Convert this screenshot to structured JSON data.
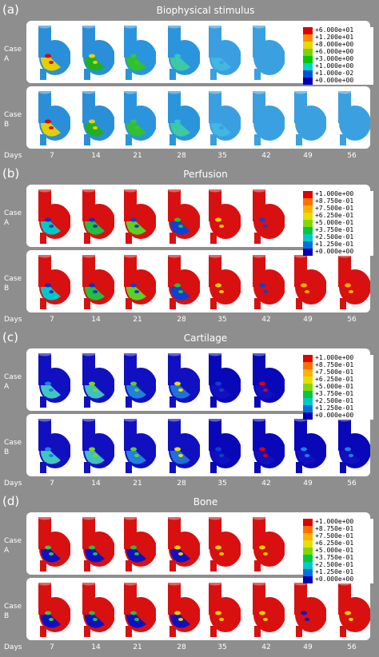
{
  "panels": [
    {
      "letter": "(a)",
      "title": "Biophysical stimulus",
      "scheme": "stimulus",
      "legend": [
        "+6.000e+01",
        "+1.200e+01",
        "+8.000e+00",
        "+6.000e+00",
        "+3.000e+00",
        "+1.000e+00",
        "+1.000e-02",
        "+0.000e+00"
      ],
      "legend_colors": [
        "#e00000",
        "#ff8c00",
        "#e6d800",
        "#7ad400",
        "#00c800",
        "#00d4c4",
        "#0050e0",
        "#0000b0"
      ],
      "caseA": {
        "label": "Case A",
        "count": 6
      },
      "caseB": {
        "label": "Case B",
        "count": 8
      }
    },
    {
      "letter": "(b)",
      "title": "Perfusion",
      "scheme": "perfusion",
      "legend": [
        "+1.000e+00",
        "+8.750e-01",
        "+7.500e-01",
        "+6.250e-01",
        "+5.000e-01",
        "+3.750e-01",
        "+2.500e-01",
        "+1.250e-01",
        "+0.000e+00"
      ],
      "legend_colors": [
        "#e00000",
        "#ff7000",
        "#ffb000",
        "#e6e000",
        "#80d800",
        "#00c840",
        "#00c8c8",
        "#0070e0",
        "#0000b0"
      ],
      "caseA": {
        "label": "Case A",
        "count": 6
      },
      "caseB": {
        "label": "Case B",
        "count": 8
      }
    },
    {
      "letter": "(c)",
      "title": "Cartilage",
      "scheme": "cartilage",
      "legend": [
        "+1.000e+00",
        "+8.750e-01",
        "+7.500e-01",
        "+6.250e-01",
        "+5.000e-01",
        "+3.750e-01",
        "+2.500e-01",
        "+1.250e-01",
        "+0.000e+00"
      ],
      "legend_colors": [
        "#e00000",
        "#ff7000",
        "#ffb000",
        "#e6e000",
        "#80d800",
        "#00c840",
        "#00c8c8",
        "#0070e0",
        "#0000b0"
      ],
      "caseA": {
        "label": "Case A",
        "count": 6
      },
      "caseB": {
        "label": "Case B",
        "count": 8
      }
    },
    {
      "letter": "(d)",
      "title": "Bone",
      "scheme": "bone",
      "legend": [
        "+1.000e+00",
        "+8.750e-01",
        "+7.500e-01",
        "+6.250e-01",
        "+5.000e-01",
        "+3.750e-01",
        "+2.500e-01",
        "+1.250e-01",
        "+0.000e+00"
      ],
      "legend_colors": [
        "#e00000",
        "#ff7000",
        "#ffb000",
        "#e6e000",
        "#80d800",
        "#00c840",
        "#00c8c8",
        "#0070e0",
        "#0000b0"
      ],
      "caseA": {
        "label": "Case A",
        "count": 6
      },
      "caseB": {
        "label": "Case B",
        "count": 8
      }
    }
  ],
  "days_label": "Days",
  "days": [
    "7",
    "14",
    "21",
    "28",
    "35",
    "42",
    "49",
    "56"
  ]
}
